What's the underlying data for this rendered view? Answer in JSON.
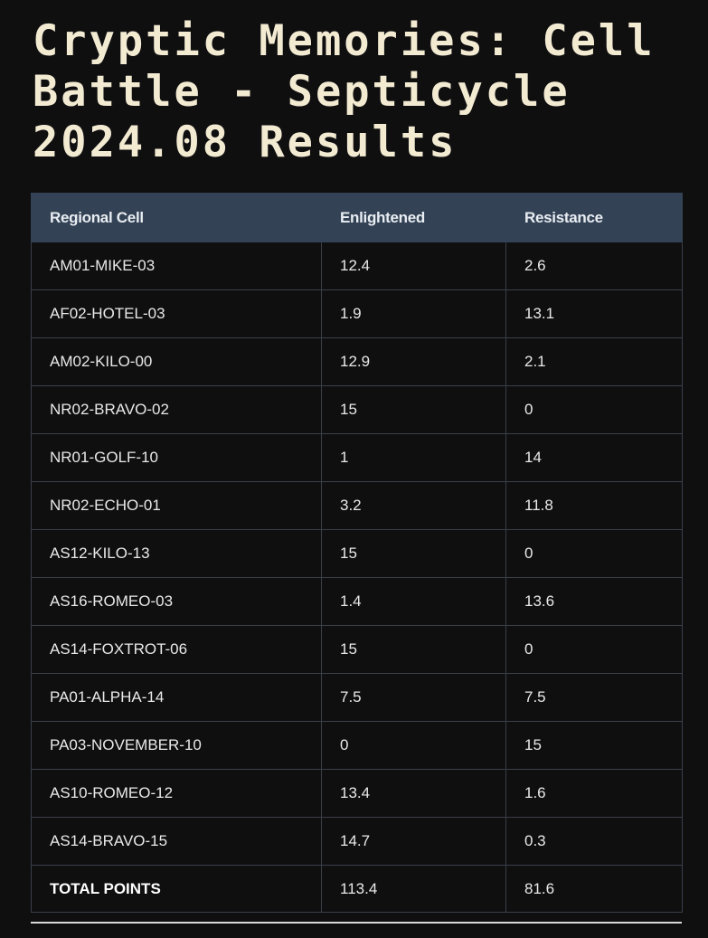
{
  "title": "Cryptic Memories: Cell Battle - Septicycle 2024.08 Results",
  "table": {
    "headers": [
      "Regional Cell",
      "Enlightened",
      "Resistance"
    ],
    "rows": [
      {
        "cell": "AM01-MIKE-03",
        "enlightened": "12.4",
        "resistance": "2.6"
      },
      {
        "cell": "AF02-HOTEL-03",
        "enlightened": "1.9",
        "resistance": "13.1"
      },
      {
        "cell": "AM02-KILO-00",
        "enlightened": "12.9",
        "resistance": "2.1"
      },
      {
        "cell": "NR02-BRAVO-02",
        "enlightened": "15",
        "resistance": "0"
      },
      {
        "cell": "NR01-GOLF-10",
        "enlightened": "1",
        "resistance": "14"
      },
      {
        "cell": "NR02-ECHO-01",
        "enlightened": "3.2",
        "resistance": "11.8"
      },
      {
        "cell": "AS12-KILO-13",
        "enlightened": "15",
        "resistance": "0"
      },
      {
        "cell": "AS16-ROMEO-03",
        "enlightened": "1.4",
        "resistance": "13.6"
      },
      {
        "cell": "AS14-FOXTROT-06",
        "enlightened": "15",
        "resistance": "0"
      },
      {
        "cell": "PA01-ALPHA-14",
        "enlightened": "7.5",
        "resistance": "7.5"
      },
      {
        "cell": "PA03-NOVEMBER-10",
        "enlightened": "0",
        "resistance": "15"
      },
      {
        "cell": "AS10-ROMEO-12",
        "enlightened": "13.4",
        "resistance": "1.6"
      },
      {
        "cell": "AS14-BRAVO-15",
        "enlightened": "14.7",
        "resistance": "0.3"
      }
    ],
    "total": {
      "label": "TOTAL POINTS",
      "enlightened": "113.4",
      "resistance": "81.6"
    }
  }
}
